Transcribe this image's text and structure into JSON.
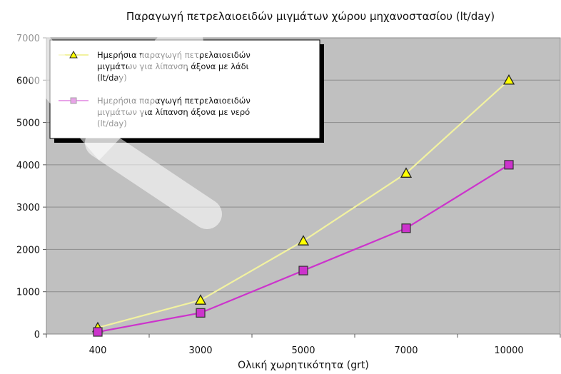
{
  "chart_data": {
    "type": "line",
    "title": "Παραγωγή πετρελαιοειδών μιγμάτων χώρου μηχανοστασίου (lt/day)",
    "xlabel": "Ολική χωρητικότητα (grt)",
    "ylabel": "",
    "categories": [
      "400",
      "3000",
      "5000",
      "7000",
      "10000"
    ],
    "ylim": [
      0,
      7000
    ],
    "yticks": [
      0,
      1000,
      2000,
      3000,
      4000,
      5000,
      6000,
      7000
    ],
    "grid": true,
    "legend_position": "top-left",
    "plot_background": "#c0c0c0",
    "series": [
      {
        "name_lines": [
          "Ημερήσια παραγωγή πετρελαιοειδών",
          "μιγμάτων για λίπανση άξονα με λάδι",
          "(lt/day)"
        ],
        "values": [
          150,
          800,
          2200,
          3800,
          6000
        ],
        "line_color": "#f2f2a0",
        "marker": "triangle",
        "marker_color": "#ffff00"
      },
      {
        "name_lines": [
          "Ημερήσια παραγωγή πετρελαιοειδών",
          "μιγμάτων για λίπανση άξονα με νερό",
          "(lt/day)"
        ],
        "values": [
          50,
          500,
          1500,
          2500,
          4000
        ],
        "line_color": "#cc33cc",
        "marker": "square",
        "marker_color": "#cc33cc"
      }
    ]
  }
}
